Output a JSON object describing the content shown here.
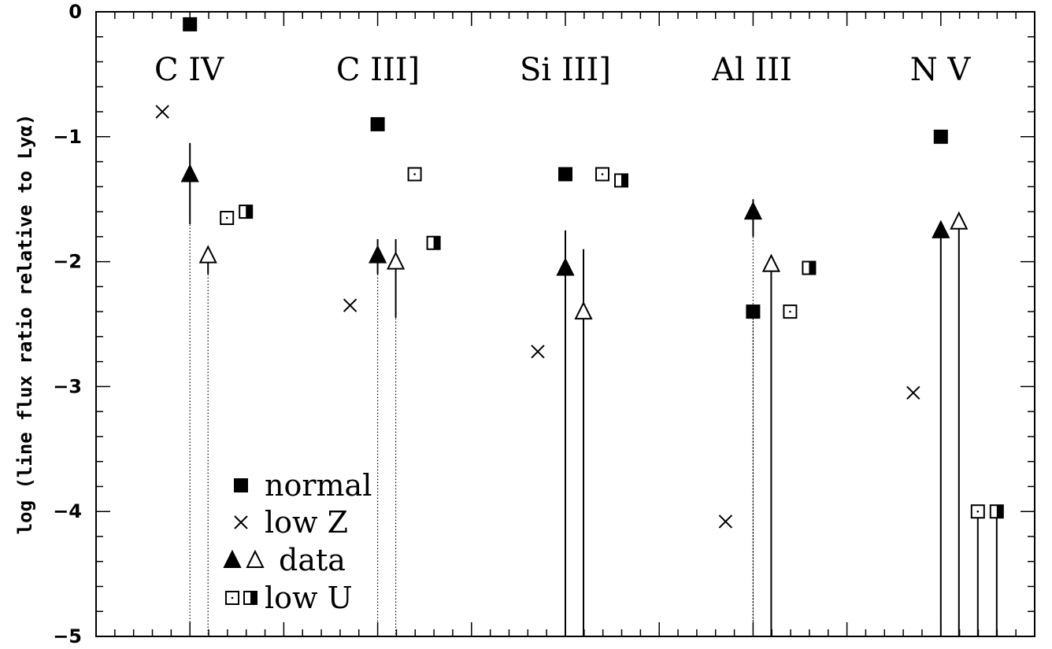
{
  "chart_data": {
    "type": "scatter",
    "ylabel": "log (line flux ratio relative to Lyα)",
    "ylim": [
      -5,
      0
    ],
    "yticks": [
      "0",
      "−1",
      "−2",
      "−3",
      "−4",
      "−5"
    ],
    "yticks_values": [
      0,
      -1,
      -2,
      -3,
      -4,
      -5
    ],
    "grid": false,
    "legend_position": "bottom-left",
    "lines": [
      {
        "label": "C IV",
        "normal": -0.1,
        "low_z": -0.8,
        "data_filled": {
          "value": -1.3,
          "err_top": -1.05,
          "err_bottom": -1.7,
          "lower_limit": "dotted"
        },
        "data_open": {
          "value": -1.95,
          "err_top": -1.95,
          "err_bottom": -2.1,
          "lower_limit": "dotted"
        },
        "low_u_open": -1.65,
        "low_u_half": -1.6
      },
      {
        "label": "C III]",
        "normal": -0.9,
        "low_z": -2.35,
        "data_filled": {
          "value": -1.95,
          "err_top": -1.82,
          "err_bottom": -2.1,
          "lower_limit": "dotted"
        },
        "data_open": {
          "value": -2.0,
          "err_top": -1.82,
          "err_bottom": -2.45,
          "lower_limit": "dotted"
        },
        "low_u_open": -1.3,
        "low_u_half": -1.85
      },
      {
        "label": "Si III]",
        "normal": -1.3,
        "low_z": -2.72,
        "data_filled": {
          "value": -2.05,
          "err_top": -1.75,
          "err_bottom": null,
          "lower_limit": "solid"
        },
        "data_open": {
          "value": -2.4,
          "err_top": -1.9,
          "err_bottom": null,
          "lower_limit": "solid"
        },
        "low_u_open": -1.3,
        "low_u_half": -1.35
      },
      {
        "label": "Al III",
        "normal": -2.4,
        "normal_lower_limit": "dotted",
        "low_z": -4.08,
        "data_filled": {
          "value": -1.6,
          "err_top": -1.5,
          "err_bottom": -1.8,
          "lower_limit": "dotted"
        },
        "data_open": {
          "value": -2.02,
          "err_top": -2.02,
          "err_bottom": null,
          "lower_limit": "solid"
        },
        "low_u_open": -2.4,
        "low_u_half": -2.05
      },
      {
        "label": "N V",
        "normal": -1.0,
        "low_z": -3.05,
        "data_filled": {
          "value": -1.75,
          "err_top": -1.75,
          "err_bottom": null,
          "lower_limit": "solid"
        },
        "data_open": {
          "value": -1.68,
          "err_top": -1.68,
          "err_bottom": null,
          "lower_limit": "solid"
        },
        "low_u_open": -4.0,
        "low_u_open_lower_limit": "solid",
        "low_u_half": -4.0,
        "low_u_half_lower_limit": "solid"
      }
    ],
    "legend": [
      {
        "symbol": "filled-square",
        "label": "normal"
      },
      {
        "symbol": "cross",
        "label": "low Z"
      },
      {
        "symbol": "triangles",
        "label": "data"
      },
      {
        "symbol": "squares",
        "label": "low U"
      }
    ]
  }
}
